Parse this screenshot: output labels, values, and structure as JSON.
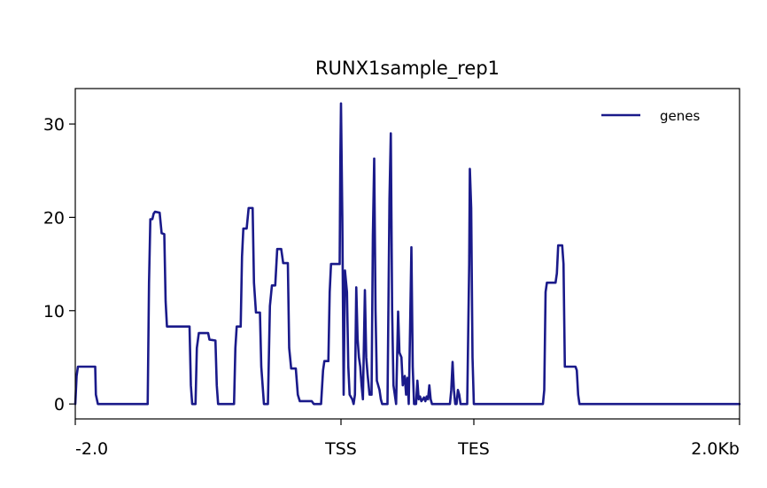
{
  "chart_data": {
    "type": "line",
    "title": "RUNX1sample_rep1",
    "xlabel": "",
    "ylabel": "",
    "x_tick_labels": [
      "-2.0",
      "TSS",
      "TES",
      "2.0Kb"
    ],
    "x_tick_positions": [
      0,
      400,
      600,
      1000
    ],
    "xlim": [
      0,
      1000
    ],
    "ylim": [
      -1.6,
      33.8
    ],
    "y_ticks": [
      0,
      10,
      20,
      30
    ],
    "grid": false,
    "legend_position": "top-right",
    "colors": {
      "series": "#1a1a8a",
      "axis": "#000000",
      "background": "#ffffff"
    },
    "series": [
      {
        "name": "genes",
        "points": [
          [
            0,
            0
          ],
          [
            2,
            3
          ],
          [
            4,
            4
          ],
          [
            30,
            4
          ],
          [
            31,
            1
          ],
          [
            34,
            0
          ],
          [
            109,
            0
          ],
          [
            111,
            13
          ],
          [
            113,
            19.8
          ],
          [
            116,
            19.8
          ],
          [
            118,
            20.4
          ],
          [
            120,
            20.6
          ],
          [
            127,
            20.5
          ],
          [
            130,
            18.3
          ],
          [
            134,
            18.2
          ],
          [
            136,
            11
          ],
          [
            138,
            8.3
          ],
          [
            172,
            8.3
          ],
          [
            174,
            2
          ],
          [
            176,
            0
          ],
          [
            181,
            0
          ],
          [
            183,
            6
          ],
          [
            186,
            7.6
          ],
          [
            200,
            7.6
          ],
          [
            202,
            6.9
          ],
          [
            211,
            6.8
          ],
          [
            213,
            2
          ],
          [
            215,
            0
          ],
          [
            239,
            0
          ],
          [
            241,
            6
          ],
          [
            243,
            8.3
          ],
          [
            249,
            8.3
          ],
          [
            251,
            15.8
          ],
          [
            253,
            18.8
          ],
          [
            258,
            18.8
          ],
          [
            261,
            21
          ],
          [
            267,
            21
          ],
          [
            269,
            13
          ],
          [
            272,
            9.8
          ],
          [
            278,
            9.8
          ],
          [
            280,
            4
          ],
          [
            284,
            0
          ],
          [
            290,
            0
          ],
          [
            293,
            10.5
          ],
          [
            296,
            12.7
          ],
          [
            301,
            12.7
          ],
          [
            304,
            16.6
          ],
          [
            310,
            16.6
          ],
          [
            313,
            15.1
          ],
          [
            320,
            15.1
          ],
          [
            322,
            6
          ],
          [
            325,
            3.8
          ],
          [
            332,
            3.8
          ],
          [
            335,
            1
          ],
          [
            338,
            0.3
          ],
          [
            356,
            0.3
          ],
          [
            359,
            0
          ],
          [
            370,
            0
          ],
          [
            373,
            3.6
          ],
          [
            375,
            4.6
          ],
          [
            381,
            4.6
          ],
          [
            383,
            12
          ],
          [
            385,
            15
          ],
          [
            398,
            15
          ],
          [
            399,
            26
          ],
          [
            400,
            32.2
          ],
          [
            402,
            20
          ],
          [
            404,
            1
          ],
          [
            406,
            14.3
          ],
          [
            409,
            12
          ],
          [
            411,
            4
          ],
          [
            413,
            1
          ],
          [
            417,
            0.5
          ],
          [
            419,
            0
          ],
          [
            421,
            1
          ],
          [
            423,
            12.5
          ],
          [
            425,
            7
          ],
          [
            427,
            5
          ],
          [
            429,
            4
          ],
          [
            431,
            2
          ],
          [
            433,
            0.5
          ],
          [
            436,
            12.2
          ],
          [
            438,
            5
          ],
          [
            440,
            3.2
          ],
          [
            443,
            1
          ],
          [
            446,
            1
          ],
          [
            448,
            18
          ],
          [
            450,
            26.3
          ],
          [
            452,
            10
          ],
          [
            454,
            2.5
          ],
          [
            456,
            2
          ],
          [
            458,
            1.5
          ],
          [
            460,
            0.5
          ],
          [
            462,
            0
          ],
          [
            470,
            0
          ],
          [
            473,
            22
          ],
          [
            475,
            29
          ],
          [
            477,
            10
          ],
          [
            479,
            2
          ],
          [
            481,
            1
          ],
          [
            483,
            0
          ],
          [
            486,
            9.9
          ],
          [
            488,
            5.5
          ],
          [
            491,
            5
          ],
          [
            493,
            2
          ],
          [
            496,
            3
          ],
          [
            498,
            1
          ],
          [
            500,
            2.8
          ],
          [
            502,
            0
          ],
          [
            504,
            8
          ],
          [
            506,
            16.8
          ],
          [
            508,
            4
          ],
          [
            510,
            0
          ],
          [
            513,
            0
          ],
          [
            515,
            2.5
          ],
          [
            517,
            0.5
          ],
          [
            519,
            0.8
          ],
          [
            521,
            0.3
          ],
          [
            523,
            0.5
          ],
          [
            525,
            0.7
          ],
          [
            527,
            0.3
          ],
          [
            529,
            0.8
          ],
          [
            531,
            0.5
          ],
          [
            533,
            2
          ],
          [
            535,
            0.5
          ],
          [
            537,
            0
          ],
          [
            564,
            0
          ],
          [
            566,
            1.5
          ],
          [
            568,
            4.5
          ],
          [
            570,
            1.5
          ],
          [
            572,
            0
          ],
          [
            574,
            0
          ],
          [
            576,
            1.5
          ],
          [
            578,
            1
          ],
          [
            580,
            0
          ],
          [
            590,
            0
          ],
          [
            593,
            15
          ],
          [
            594,
            25.2
          ],
          [
            596,
            21
          ],
          [
            598,
            5
          ],
          [
            600,
            0
          ],
          [
            704,
            0
          ],
          [
            706,
            1.5
          ],
          [
            708,
            12
          ],
          [
            710,
            13
          ],
          [
            723,
            13
          ],
          [
            725,
            14
          ],
          [
            727,
            17
          ],
          [
            733,
            17
          ],
          [
            735,
            15
          ],
          [
            737,
            4
          ],
          [
            751,
            4
          ],
          [
            753,
            4
          ],
          [
            755,
            3.6
          ],
          [
            757,
            1
          ],
          [
            759,
            0
          ],
          [
            1000,
            0
          ]
        ]
      }
    ]
  }
}
